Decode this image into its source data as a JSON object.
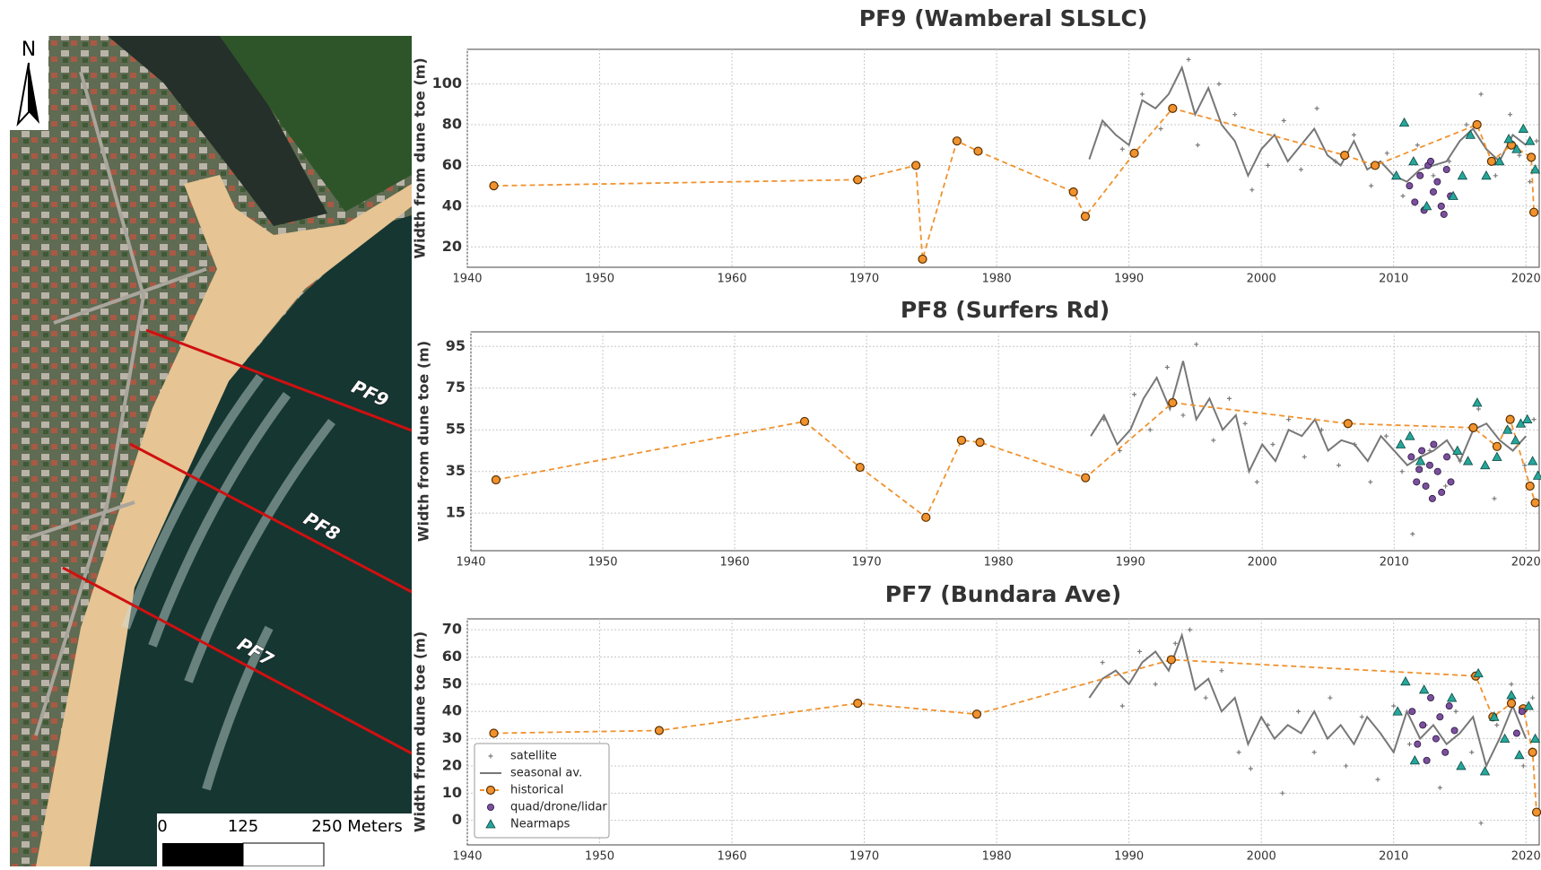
{
  "map": {
    "north": "N",
    "profiles": [
      "PF9",
      "PF8",
      "PF7"
    ],
    "scale_labels": [
      "0",
      "125",
      "250 Meters"
    ]
  },
  "chart_data": [
    {
      "type": "line",
      "title": "PF9 (Wamberal SLSLC)",
      "y_label": "Width from dune toe (m)",
      "xlim": [
        1940,
        2021
      ],
      "xticks": [
        1940,
        1950,
        1960,
        1970,
        1980,
        1990,
        2000,
        2010,
        2020
      ],
      "ylim": [
        10,
        117
      ],
      "yticks": [
        20,
        40,
        60,
        80,
        100
      ],
      "grid": true,
      "series": [
        {
          "style": "points",
          "color": "#7a7a7a",
          "x": [
            1988.2,
            1989.5,
            1991,
            1992.4,
            1994.5,
            1995.2,
            1996.8,
            1998,
            1999.3,
            2000.5,
            2001.7,
            2003,
            2004.2,
            2005.6,
            2007,
            2008.3,
            2009.5,
            2010.7,
            2011.8,
            2013,
            2014.2,
            2015.5,
            2016.6,
            2017.7,
            2018.8,
            2019.5,
            2020.3,
            2020.8
          ],
          "values": [
            80,
            68,
            95,
            78,
            112,
            70,
            100,
            85,
            48,
            60,
            82,
            58,
            88,
            62,
            75,
            50,
            66,
            45,
            70,
            55,
            62,
            80,
            95,
            55,
            85,
            65,
            52,
            72
          ]
        },
        {
          "style": "line",
          "color": "#777777",
          "x": [
            1987,
            1988,
            1989,
            1990,
            1991,
            1992,
            1993,
            1994,
            1995,
            1996,
            1997,
            1998,
            1999,
            2000,
            2001,
            2002,
            2003,
            2004,
            2005,
            2006,
            2007,
            2008,
            2009,
            2010,
            2011,
            2012,
            2013,
            2014,
            2015,
            2016,
            2017,
            2018,
            2019,
            2020
          ],
          "values": [
            63,
            82,
            75,
            70,
            92,
            88,
            95,
            108,
            85,
            98,
            80,
            72,
            55,
            68,
            75,
            62,
            70,
            78,
            65,
            60,
            72,
            58,
            62,
            55,
            52,
            58,
            60,
            62,
            72,
            78,
            68,
            62,
            75,
            70
          ]
        },
        {
          "style": "line-markers",
          "color": "#f0922e",
          "x": [
            1942,
            1969.5,
            1973.9,
            1974.4,
            1977,
            1978.6,
            1985.8,
            1986.7,
            1990.4,
            1993.3,
            2006.3,
            2008.6,
            2016.3,
            2017.4,
            2018.9,
            2020.4,
            2020.6
          ],
          "values": [
            50,
            53,
            60,
            14,
            72,
            67,
            47,
            35,
            66,
            88,
            65,
            60,
            80,
            62,
            70,
            64,
            37
          ]
        },
        {
          "style": "circles",
          "color": "#7b4f9d",
          "x": [
            2011.2,
            2011.6,
            2012,
            2012.3,
            2012.6,
            2013,
            2013.3,
            2013.6,
            2014,
            2014.3,
            2013.8,
            2012.8
          ],
          "values": [
            50,
            42,
            55,
            38,
            60,
            47,
            52,
            40,
            58,
            45,
            36,
            62
          ]
        },
        {
          "style": "triangles",
          "color": "#26a69a",
          "x": [
            2010.2,
            2010.8,
            2011.5,
            2012.5,
            2014.5,
            2015.2,
            2015.8,
            2017,
            2018,
            2018.7,
            2019.3,
            2019.8,
            2020.3,
            2020.7
          ],
          "values": [
            55,
            81,
            62,
            40,
            45,
            55,
            75,
            55,
            62,
            73,
            68,
            78,
            72,
            58
          ]
        }
      ]
    },
    {
      "type": "line",
      "title": "PF8 (Surfers Rd)",
      "y_label": "Width from dune toe (m)",
      "xlim": [
        1940,
        2021
      ],
      "xticks": [
        1940,
        1950,
        1960,
        1970,
        1980,
        1990,
        2000,
        2010,
        2020
      ],
      "ylim": [
        -3,
        102
      ],
      "yticks": [
        15,
        35,
        55,
        75,
        95
      ],
      "grid": true,
      "series": [
        {
          "style": "points",
          "color": "#7a7a7a",
          "x": [
            1988,
            1989.2,
            1990.3,
            1991.5,
            1992.8,
            1994,
            1995,
            1996.3,
            1997.5,
            1998.7,
            1999.6,
            2000.8,
            2002,
            2003.2,
            2004.5,
            2005.8,
            2007,
            2008.2,
            2009.4,
            2010.6,
            2011.4,
            2012.7,
            2013.9,
            2015,
            2016.4,
            2017.6,
            2018.8,
            2019.9,
            2020.6
          ],
          "values": [
            60,
            45,
            72,
            55,
            85,
            62,
            96,
            50,
            70,
            58,
            30,
            48,
            60,
            42,
            55,
            38,
            48,
            30,
            52,
            35,
            5,
            45,
            28,
            40,
            65,
            22,
            55,
            38,
            60
          ]
        },
        {
          "style": "line",
          "color": "#777777",
          "x": [
            1987,
            1988,
            1989,
            1990,
            1991,
            1992,
            1993,
            1994,
            1995,
            1996,
            1997,
            1998,
            1999,
            2000,
            2001,
            2002,
            2003,
            2004,
            2005,
            2006,
            2007,
            2008,
            2009,
            2010,
            2011,
            2012,
            2013,
            2014,
            2015,
            2016,
            2017,
            2018,
            2019,
            2020
          ],
          "values": [
            52,
            62,
            48,
            55,
            70,
            80,
            65,
            88,
            60,
            70,
            55,
            62,
            35,
            48,
            40,
            55,
            52,
            60,
            45,
            50,
            48,
            40,
            52,
            45,
            38,
            42,
            45,
            50,
            40,
            55,
            58,
            50,
            45,
            52
          ]
        },
        {
          "style": "line-markers",
          "color": "#f0922e",
          "x": [
            1941.9,
            1965.3,
            1969.5,
            1974.5,
            1977.2,
            1978.6,
            1986.6,
            1993.2,
            2006.5,
            2016,
            2017.8,
            2018.8,
            2020.3,
            2020.7
          ],
          "values": [
            31,
            59,
            37,
            13,
            50,
            49,
            32,
            68,
            58,
            56,
            47,
            60,
            28,
            20
          ]
        },
        {
          "style": "circles",
          "color": "#7b4f9d",
          "x": [
            2011.3,
            2011.7,
            2012.1,
            2012.4,
            2012.7,
            2013,
            2013.3,
            2013.6,
            2014,
            2014.3,
            2012.9,
            2011.9
          ],
          "values": [
            42,
            30,
            45,
            28,
            38,
            48,
            35,
            25,
            42,
            30,
            22,
            36
          ]
        },
        {
          "style": "triangles",
          "color": "#26a69a",
          "x": [
            2010.5,
            2011.2,
            2012,
            2014.8,
            2015.6,
            2016.3,
            2016.9,
            2017.8,
            2018.6,
            2019.2,
            2019.6,
            2020.1,
            2020.5,
            2020.9
          ],
          "values": [
            48,
            52,
            40,
            45,
            40,
            68,
            38,
            42,
            55,
            50,
            58,
            60,
            40,
            33
          ]
        }
      ]
    },
    {
      "type": "line",
      "title": "PF7 (Bundara Ave)",
      "y_label": "Width from dune toe (m)",
      "xlim": [
        1940,
        2021
      ],
      "xticks": [
        1940,
        1950,
        1960,
        1970,
        1980,
        1990,
        2000,
        2010,
        2020
      ],
      "ylim": [
        -9,
        74
      ],
      "yticks": [
        0,
        10,
        20,
        30,
        40,
        50,
        60,
        70
      ],
      "grid": true,
      "legend": "lower left",
      "series": [
        {
          "name": "satellite",
          "style": "points",
          "color": "#7a7a7a",
          "x": [
            1988,
            1989.5,
            1990.8,
            1992,
            1993.5,
            1994.6,
            1995.8,
            1997,
            1998.3,
            1999.2,
            2000.5,
            2001.6,
            2002.8,
            2004,
            2005.2,
            2006.4,
            2007.6,
            2008.8,
            2010,
            2011.2,
            2012.4,
            2013.5,
            2014.7,
            2015.9,
            2016.6,
            2017.8,
            2018.9,
            2019.8,
            2020.5
          ],
          "values": [
            58,
            42,
            62,
            50,
            65,
            70,
            45,
            55,
            25,
            19,
            35,
            10,
            40,
            25,
            45,
            20,
            38,
            15,
            42,
            28,
            35,
            12,
            40,
            25,
            -1,
            35,
            50,
            20,
            45
          ]
        },
        {
          "name": "seasonal av.",
          "style": "line",
          "color": "#777777",
          "x": [
            1987,
            1988,
            1989,
            1990,
            1991,
            1992,
            1993,
            1994,
            1995,
            1996,
            1997,
            1998,
            1999,
            2000,
            2001,
            2002,
            2003,
            2004,
            2005,
            2006,
            2007,
            2008,
            2009,
            2010,
            2011,
            2012,
            2013,
            2014,
            2015,
            2016,
            2017,
            2018,
            2019,
            2020
          ],
          "values": [
            45,
            52,
            55,
            50,
            58,
            62,
            55,
            68,
            48,
            52,
            40,
            45,
            28,
            38,
            30,
            35,
            32,
            40,
            30,
            35,
            28,
            38,
            32,
            25,
            40,
            30,
            35,
            28,
            32,
            38,
            20,
            30,
            42,
            30
          ]
        },
        {
          "name": "historical",
          "style": "line-markers",
          "color": "#f0922e",
          "x": [
            1942,
            1954.5,
            1969.5,
            1978.5,
            1993.2,
            2016.2,
            2017.5,
            2018.9,
            2019.8,
            2020.5,
            2020.8
          ],
          "values": [
            32,
            33,
            43,
            39,
            59,
            53,
            38,
            43,
            41,
            25,
            3
          ]
        },
        {
          "name": "quad/drone/lidar",
          "style": "circles",
          "color": "#7b4f9d",
          "x": [
            2011.4,
            2011.8,
            2012.2,
            2012.5,
            2012.8,
            2013.2,
            2013.5,
            2013.9,
            2014.2,
            2014.6,
            2019.3,
            2019.7
          ],
          "values": [
            40,
            28,
            35,
            22,
            45,
            30,
            38,
            25,
            42,
            33,
            32,
            40
          ]
        },
        {
          "name": "Nearmaps",
          "style": "triangles",
          "color": "#26a69a",
          "x": [
            2010.3,
            2010.9,
            2011.6,
            2012.3,
            2014.4,
            2015.1,
            2016.4,
            2016.9,
            2017.6,
            2018.4,
            2018.9,
            2019.5,
            2020.2,
            2020.7
          ],
          "values": [
            40,
            51,
            22,
            48,
            45,
            20,
            54,
            18,
            38,
            30,
            46,
            24,
            42,
            30
          ]
        }
      ]
    }
  ]
}
